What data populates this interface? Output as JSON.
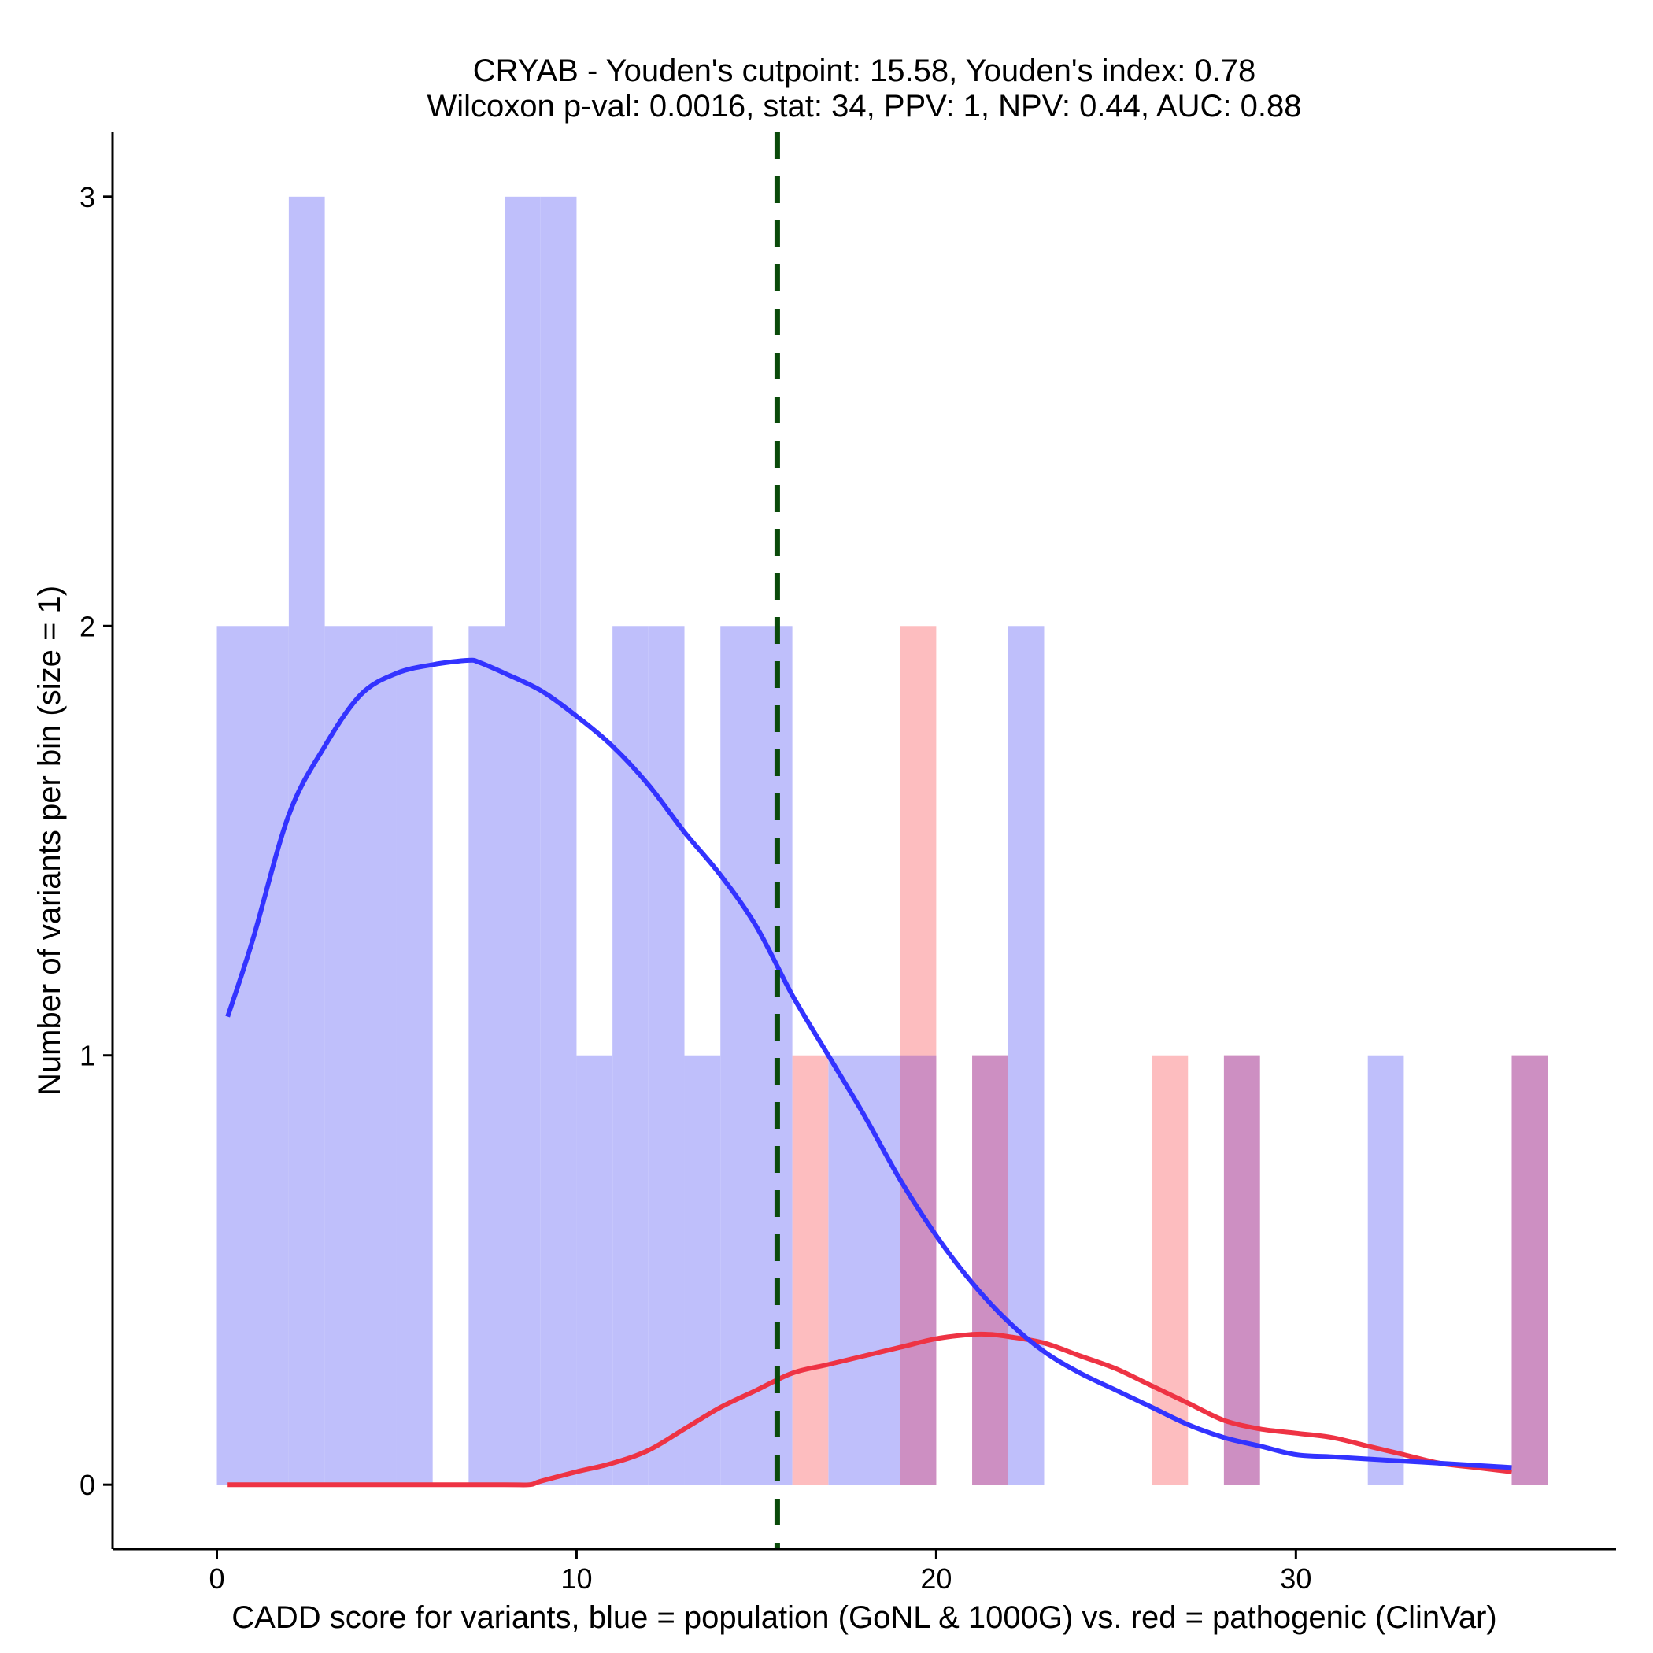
{
  "chart_data": {
    "type": "bar",
    "title_line1": "CRYAB - Youden's cutpoint: 15.58, Youden's index: 0.78",
    "title_line2": "Wilcoxon p-val: 0.0016, stat: 34, PPV: 1, NPV: 0.44, AUC: 0.88",
    "xlabel": "CADD score for variants, blue = population (GoNL & 1000G) vs. red = pathogenic (ClinVar)",
    "ylabel": "Number of variants per bin (size = 1)",
    "xlim": [
      -2.9,
      38.9
    ],
    "ylim": [
      -0.15,
      3.15
    ],
    "x_ticks": [
      0,
      10,
      20,
      30
    ],
    "y_ticks": [
      0,
      1,
      2,
      3
    ],
    "bin_width": 1,
    "cutpoint": 15.58,
    "colors": {
      "population_bar": "#bfbffb",
      "pathogenic_bar": "#fdbdbf",
      "overlap_bar": "#cd8fc2",
      "population_curve": "#3333ff",
      "pathogenic_curve": "#ee3344",
      "cutpoint_line": "#0a4a0a"
    },
    "series": [
      {
        "name": "population (GoNL & 1000G)",
        "bins": [
          {
            "start": 0,
            "count": 2
          },
          {
            "start": 1,
            "count": 2
          },
          {
            "start": 2,
            "count": 3
          },
          {
            "start": 3,
            "count": 2
          },
          {
            "start": 4,
            "count": 2
          },
          {
            "start": 5,
            "count": 2
          },
          {
            "start": 7,
            "count": 2
          },
          {
            "start": 8,
            "count": 3
          },
          {
            "start": 9,
            "count": 3
          },
          {
            "start": 10,
            "count": 1
          },
          {
            "start": 11,
            "count": 2
          },
          {
            "start": 12,
            "count": 2
          },
          {
            "start": 13,
            "count": 1
          },
          {
            "start": 14,
            "count": 2
          },
          {
            "start": 15,
            "count": 2
          },
          {
            "start": 17,
            "count": 1
          },
          {
            "start": 18,
            "count": 1
          },
          {
            "start": 19,
            "count": 1
          },
          {
            "start": 21,
            "count": 1
          },
          {
            "start": 22,
            "count": 2
          },
          {
            "start": 28,
            "count": 1
          },
          {
            "start": 32,
            "count": 1
          },
          {
            "start": 36,
            "count": 1
          }
        ],
        "density_x": [
          0.3,
          1,
          2,
          3,
          4,
          5,
          6,
          7,
          7.3,
          8,
          9,
          10,
          11,
          12,
          13,
          14,
          15,
          16,
          17,
          18,
          19,
          20,
          21,
          22,
          23,
          24,
          25,
          26,
          27,
          28,
          29,
          30,
          31,
          32,
          33,
          34,
          35,
          36
        ],
        "density_y": [
          1.09,
          1.27,
          1.56,
          1.72,
          1.84,
          1.89,
          1.91,
          1.92,
          1.915,
          1.89,
          1.85,
          1.79,
          1.72,
          1.63,
          1.52,
          1.42,
          1.3,
          1.14,
          1.0,
          0.86,
          0.71,
          0.58,
          0.47,
          0.38,
          0.31,
          0.26,
          0.22,
          0.18,
          0.14,
          0.11,
          0.09,
          0.07,
          0.065,
          0.06,
          0.055,
          0.05,
          0.045,
          0.04
        ],
        "color": "#3333ff"
      },
      {
        "name": "pathogenic (ClinVar)",
        "bins": [
          {
            "start": 16,
            "count": 1
          },
          {
            "start": 19,
            "count": 2
          },
          {
            "start": 21,
            "count": 1
          },
          {
            "start": 26,
            "count": 1
          },
          {
            "start": 28,
            "count": 1
          },
          {
            "start": 36,
            "count": 1
          }
        ],
        "density_x": [
          0.3,
          2,
          4,
          6,
          8,
          8.7,
          9,
          10,
          11,
          12,
          13,
          14,
          15,
          16,
          17,
          18,
          19,
          20,
          21,
          21.5,
          22,
          23,
          24,
          25,
          26,
          27,
          28,
          29,
          30,
          31,
          32,
          33,
          34,
          35,
          36
        ],
        "density_y": [
          0,
          0,
          0,
          0,
          0,
          0,
          0.008,
          0.03,
          0.05,
          0.08,
          0.13,
          0.18,
          0.22,
          0.26,
          0.28,
          0.3,
          0.32,
          0.34,
          0.35,
          0.35,
          0.345,
          0.33,
          0.3,
          0.27,
          0.23,
          0.19,
          0.15,
          0.13,
          0.12,
          0.11,
          0.09,
          0.07,
          0.05,
          0.04,
          0.03
        ],
        "color": "#ee3344"
      }
    ],
    "legend": "none"
  }
}
